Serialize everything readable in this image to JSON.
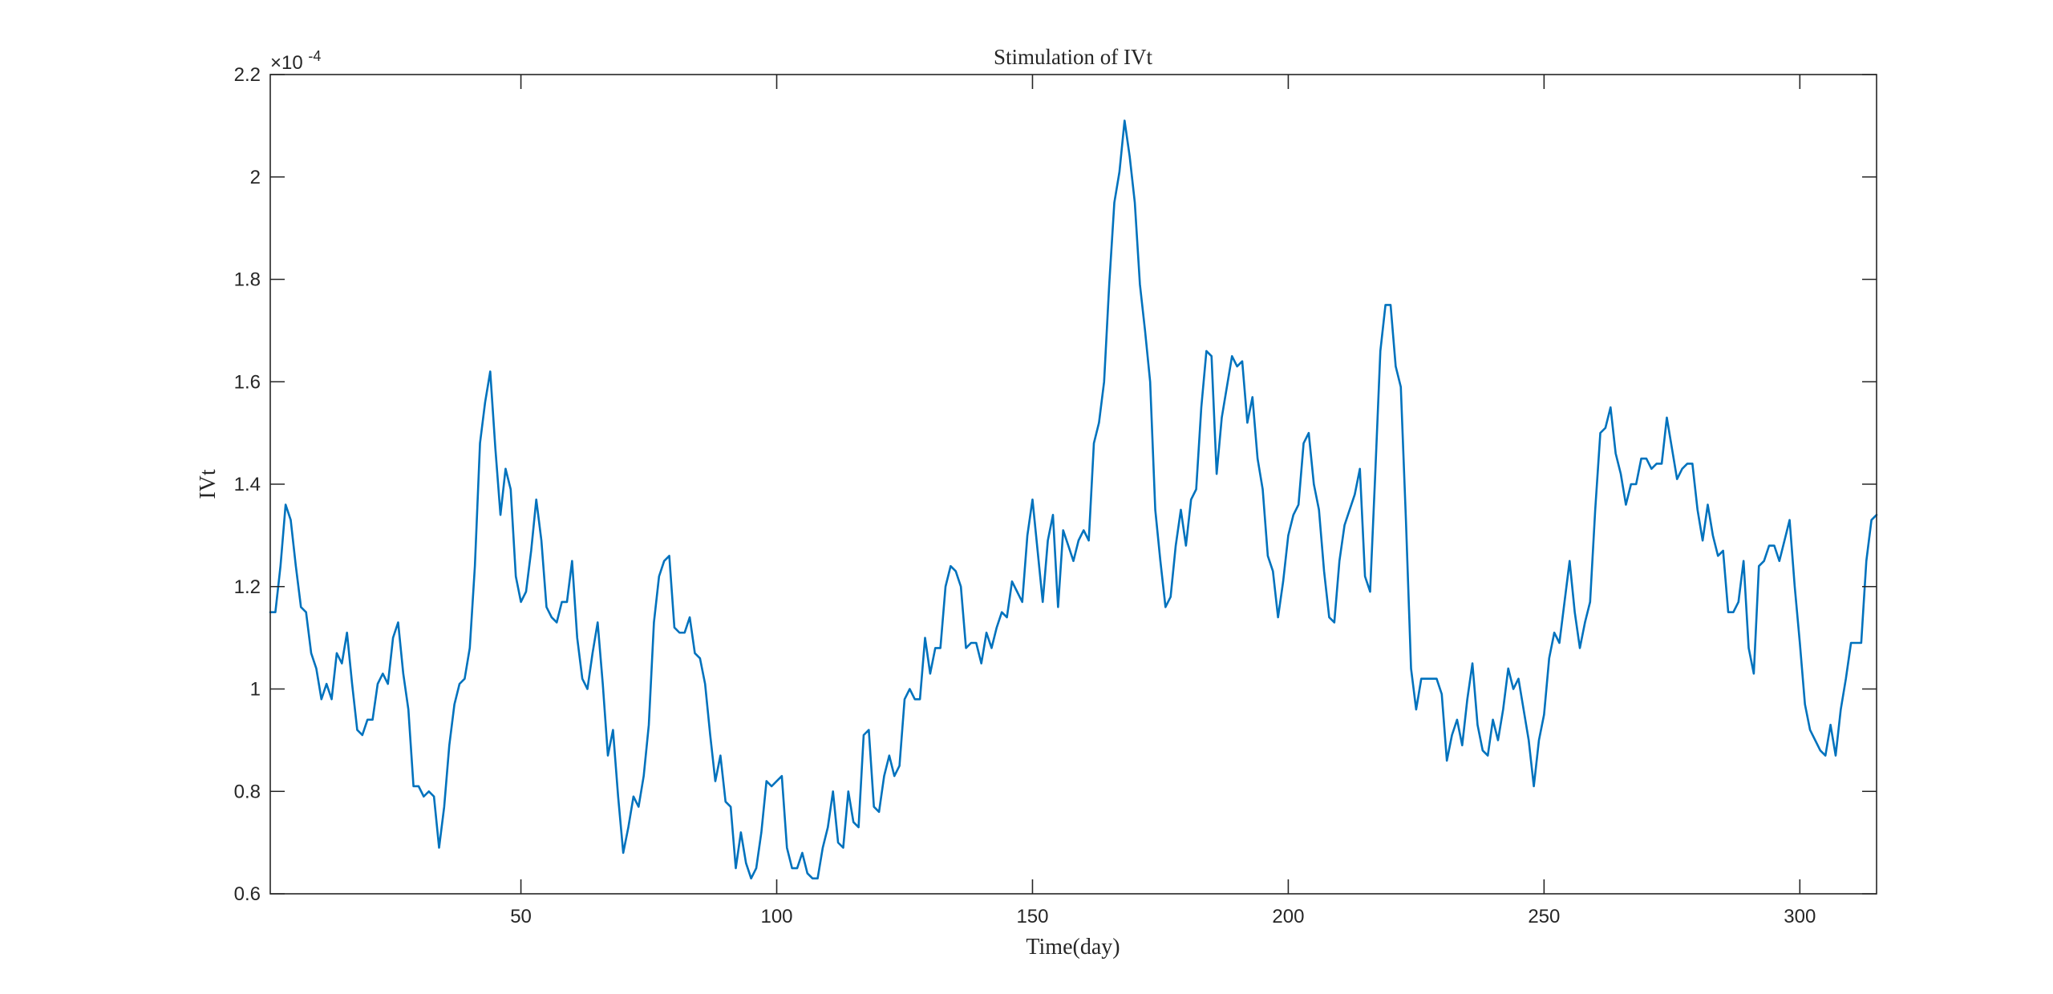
{
  "chart_data": {
    "type": "line",
    "title": "Stimulation of IVt",
    "xlabel": "Time(day)",
    "ylabel": "IVt",
    "y_multiplier_label": "×10",
    "y_multiplier_exponent": "-4",
    "xlim": [
      1,
      315
    ],
    "ylim": [
      0.6,
      2.2
    ],
    "x_ticks": [
      50,
      100,
      150,
      200,
      250,
      300
    ],
    "x_tick_labels": [
      "50",
      "100",
      "150",
      "200",
      "250",
      "300"
    ],
    "y_ticks": [
      0.6,
      0.8,
      1.0,
      1.2,
      1.4,
      1.6,
      1.8,
      2.0,
      2.2
    ],
    "y_tick_labels": [
      "0.6",
      "0.8",
      "1",
      "1.2",
      "1.4",
      "1.6",
      "1.8",
      "2",
      "2.2"
    ],
    "grid": false,
    "line_color": "#0072BD",
    "series": [
      {
        "x_start": 1,
        "x_step": 1,
        "values": [
          1.15,
          1.15,
          1.24,
          1.36,
          1.33,
          1.24,
          1.16,
          1.15,
          1.07,
          1.04,
          0.98,
          1.01,
          0.98,
          1.07,
          1.05,
          1.11,
          1.01,
          0.92,
          0.91,
          0.94,
          0.94,
          1.01,
          1.03,
          1.01,
          1.1,
          1.13,
          1.03,
          0.96,
          0.81,
          0.81,
          0.79,
          0.8,
          0.79,
          0.69,
          0.77,
          0.89,
          0.97,
          1.01,
          1.02,
          1.08,
          1.24,
          1.48,
          1.56,
          1.62,
          1.47,
          1.34,
          1.43,
          1.39,
          1.22,
          1.17,
          1.19,
          1.27,
          1.37,
          1.29,
          1.16,
          1.14,
          1.13,
          1.17,
          1.17,
          1.25,
          1.1,
          1.02,
          1.0,
          1.07,
          1.13,
          1.01,
          0.87,
          0.92,
          0.79,
          0.68,
          0.73,
          0.79,
          0.77,
          0.83,
          0.93,
          1.13,
          1.22,
          1.25,
          1.26,
          1.12,
          1.11,
          1.11,
          1.14,
          1.07,
          1.06,
          1.01,
          0.91,
          0.82,
          0.87,
          0.78,
          0.77,
          0.65,
          0.72,
          0.66,
          0.63,
          0.65,
          0.72,
          0.82,
          0.81,
          0.82,
          0.83,
          0.69,
          0.65,
          0.65,
          0.68,
          0.64,
          0.63,
          0.63,
          0.69,
          0.73,
          0.8,
          0.7,
          0.69,
          0.8,
          0.74,
          0.73,
          0.91,
          0.92,
          0.77,
          0.76,
          0.83,
          0.87,
          0.83,
          0.85,
          0.98,
          1.0,
          0.98,
          0.98,
          1.1,
          1.03,
          1.08,
          1.08,
          1.2,
          1.24,
          1.23,
          1.2,
          1.08,
          1.09,
          1.09,
          1.05,
          1.11,
          1.08,
          1.12,
          1.15,
          1.14,
          1.21,
          1.19,
          1.17,
          1.3,
          1.37,
          1.27,
          1.17,
          1.29,
          1.34,
          1.16,
          1.31,
          1.28,
          1.25,
          1.29,
          1.31,
          1.29,
          1.48,
          1.52,
          1.6,
          1.79,
          1.95,
          2.01,
          2.11,
          2.04,
          1.95,
          1.79,
          1.7,
          1.6,
          1.35,
          1.25,
          1.16,
          1.18,
          1.28,
          1.35,
          1.28,
          1.37,
          1.39,
          1.55,
          1.66,
          1.65,
          1.42,
          1.53,
          1.59,
          1.65,
          1.63,
          1.64,
          1.52,
          1.57,
          1.45,
          1.39,
          1.26,
          1.23,
          1.14,
          1.21,
          1.3,
          1.34,
          1.36,
          1.48,
          1.5,
          1.4,
          1.35,
          1.23,
          1.14,
          1.13,
          1.25,
          1.32,
          1.35,
          1.38,
          1.43,
          1.22,
          1.19,
          1.42,
          1.66,
          1.75,
          1.75,
          1.63,
          1.59,
          1.33,
          1.04,
          0.96,
          1.02,
          1.02,
          1.02,
          1.02,
          0.99,
          0.86,
          0.91,
          0.94,
          0.89,
          0.98,
          1.05,
          0.93,
          0.88,
          0.87,
          0.94,
          0.9,
          0.96,
          1.04,
          1.0,
          1.02,
          0.96,
          0.9,
          0.81,
          0.9,
          0.95,
          1.06,
          1.11,
          1.09,
          1.17,
          1.25,
          1.15,
          1.08,
          1.13,
          1.17,
          1.35,
          1.5,
          1.51,
          1.55,
          1.46,
          1.42,
          1.36,
          1.4,
          1.4,
          1.45,
          1.45,
          1.43,
          1.44,
          1.44,
          1.53,
          1.47,
          1.41,
          1.43,
          1.44,
          1.44,
          1.35,
          1.29,
          1.36,
          1.3,
          1.26,
          1.27,
          1.15,
          1.15,
          1.17,
          1.25,
          1.08,
          1.03,
          1.24,
          1.25,
          1.28,
          1.28,
          1.25,
          1.29,
          1.33,
          1.2,
          1.09,
          0.97,
          0.92,
          0.9,
          0.88,
          0.87,
          0.93,
          0.87,
          0.96,
          1.02,
          1.09,
          1.09,
          1.09,
          1.25,
          1.33,
          1.34
        ]
      }
    ]
  }
}
